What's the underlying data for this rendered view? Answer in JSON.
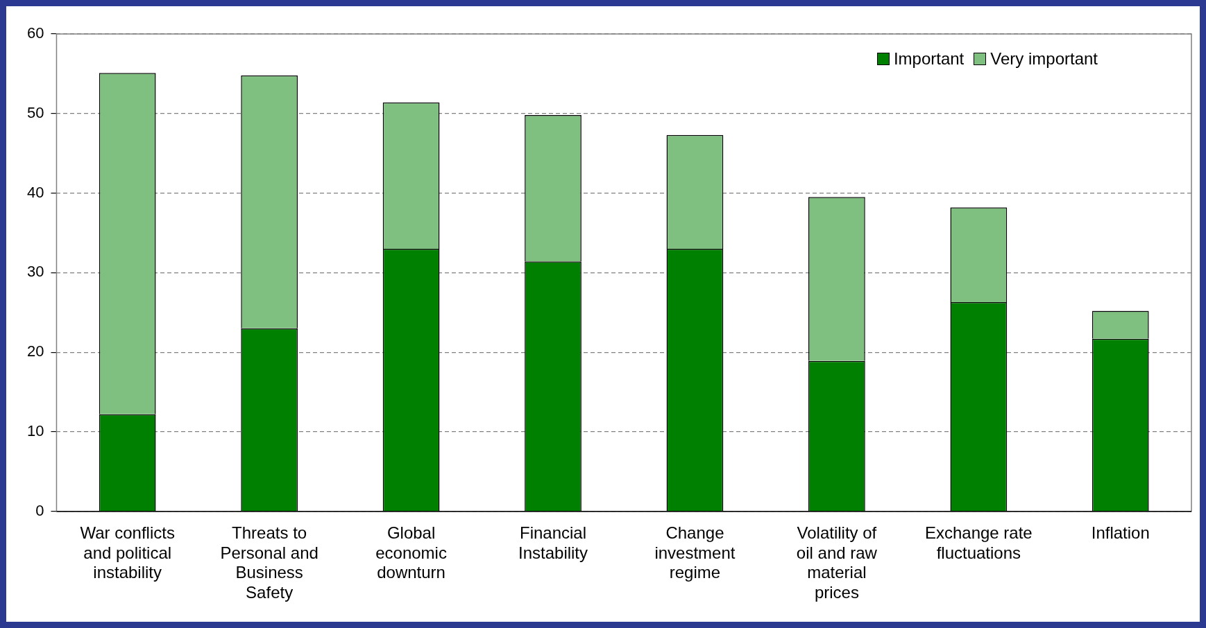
{
  "chart_data": {
    "type": "bar",
    "stacked": true,
    "categories": [
      "War conflicts and political instability",
      "Threats to Personal and Business Safety",
      "Global economic downturn",
      "Financial Instability",
      "Change investment regime",
      "Volatility of oil and raw material prices",
      "Exchange rate fluctuations",
      "Inflation"
    ],
    "series": [
      {
        "name": "Important",
        "color": "#008000",
        "values": [
          12.2,
          23.0,
          33.0,
          31.4,
          33.0,
          18.9,
          26.3,
          21.7
        ]
      },
      {
        "name": "Very important",
        "color": "#7fbf7f",
        "values": [
          42.9,
          31.8,
          18.4,
          18.4,
          14.3,
          20.6,
          11.9,
          3.5
        ]
      }
    ],
    "ylim": [
      0,
      60
    ],
    "yticks": [
      0,
      10,
      20,
      30,
      40,
      50,
      60
    ],
    "grid": "y",
    "legend": "top right"
  }
}
